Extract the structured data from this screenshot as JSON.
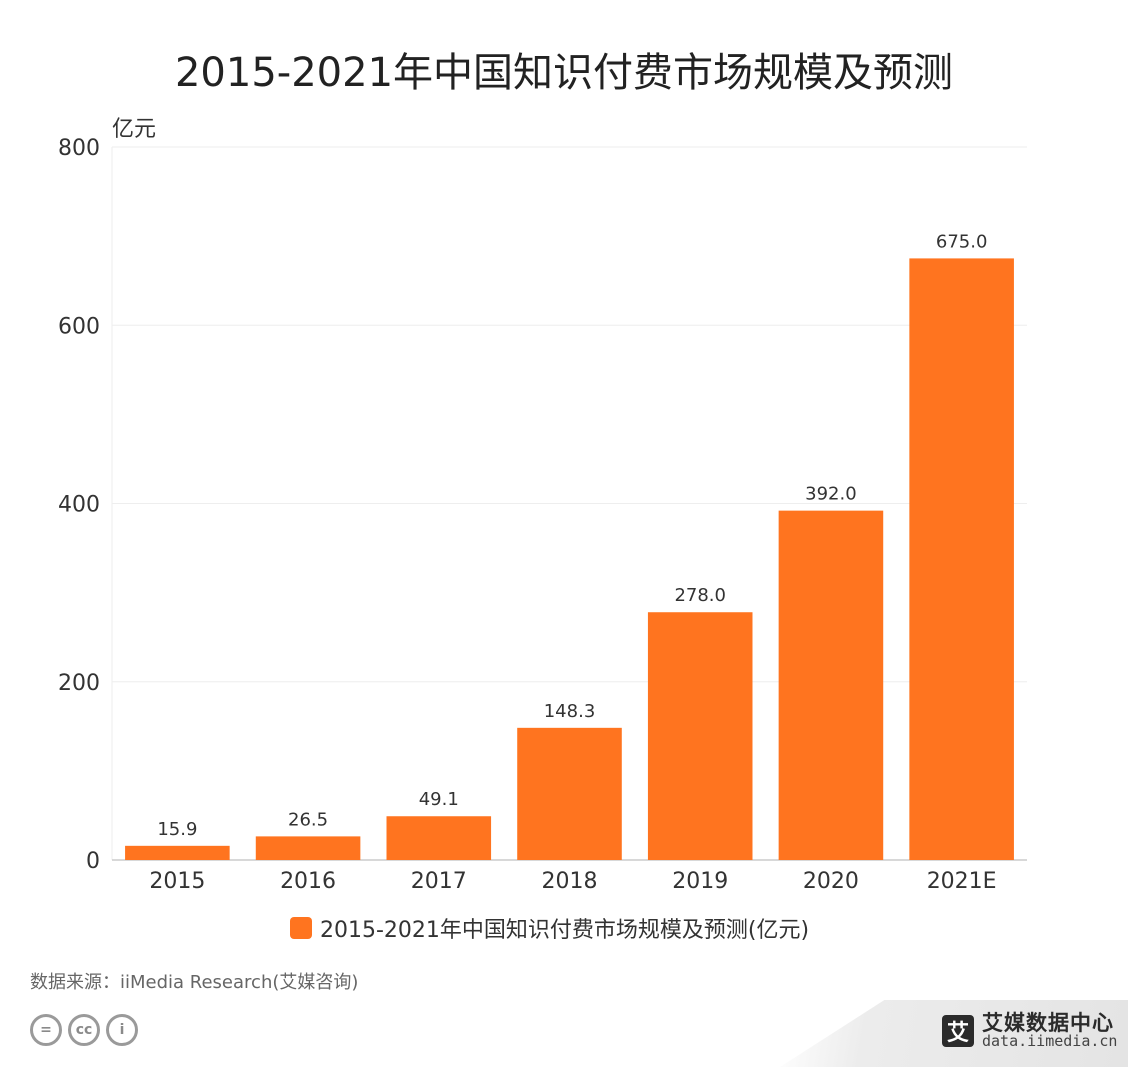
{
  "chart_data": {
    "type": "bar",
    "title": "2015-2021年中国知识付费市场规模及预测",
    "ylabel": "亿元",
    "xlabel": "",
    "categories": [
      "2015",
      "2016",
      "2017",
      "2018",
      "2019",
      "2020",
      "2021E"
    ],
    "series": [
      {
        "name": "2015-2021年中国知识付费市场规模及预测(亿元)",
        "values": [
          15.9,
          26.5,
          49.1,
          148.3,
          278.0,
          392.0,
          675.0
        ],
        "value_labels": [
          "15.9",
          "26.5",
          "49.1",
          "148.3",
          "278.0",
          "392.0",
          "675.0"
        ],
        "color": "#FF741F"
      }
    ],
    "ylim": [
      0,
      800
    ],
    "yticks": [
      0,
      200,
      400,
      600,
      800
    ],
    "grid": true,
    "legend_position": "bottom"
  },
  "source": "数据来源：iiMedia Research(艾媒咨询)",
  "brand": {
    "logo_char": "艾",
    "name": "艾媒数据中心",
    "url": "data.iimedia.cn"
  },
  "license_icons": [
    "cc-nd-icon",
    "cc-icon",
    "cc-by-icon"
  ],
  "colors": {
    "bar": "#FF741F",
    "grid": "#eeeeee",
    "axis": "#cccccc"
  }
}
